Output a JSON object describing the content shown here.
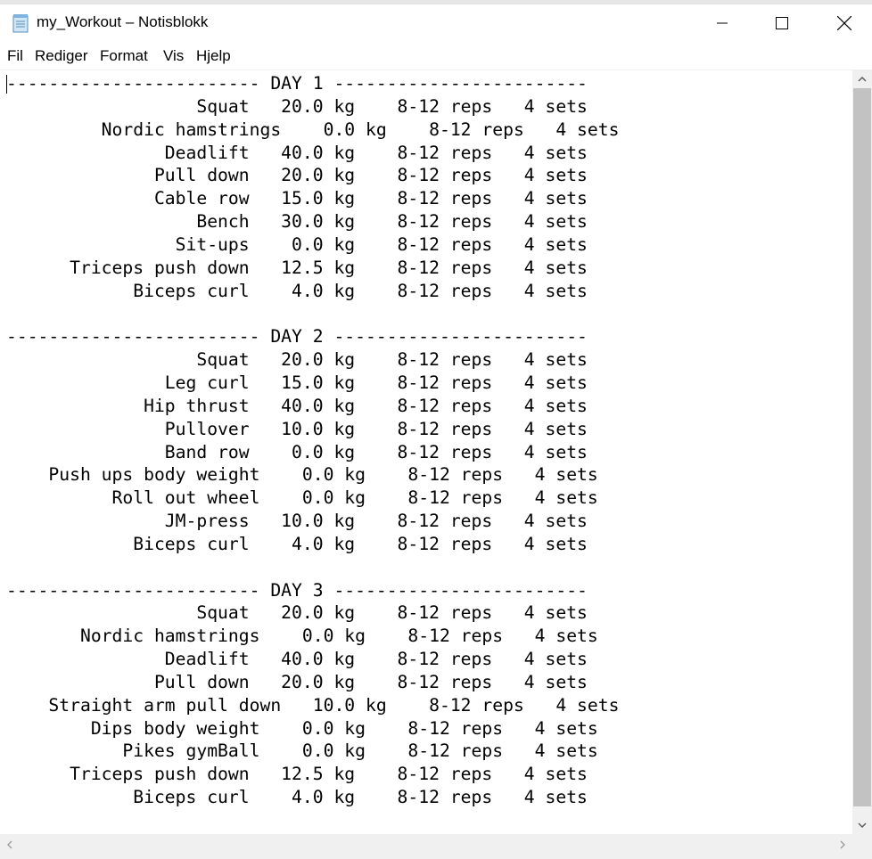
{
  "window": {
    "title": "my_Workout – Notisblokk",
    "icon": "notepad-icon"
  },
  "menu": {
    "items": [
      "Fil",
      "Rediger",
      "Format",
      "Vis",
      "Hjelp"
    ]
  },
  "document": {
    "lines": [
      "------------------------ DAY 1 ------------------------",
      "                  Squat   20.0 kg    8-12 reps   4 sets",
      "         Nordic hamstrings    0.0 kg    8-12 reps   4 sets",
      "               Deadlift   40.0 kg    8-12 reps   4 sets",
      "              Pull down   20.0 kg    8-12 reps   4 sets",
      "              Cable row   15.0 kg    8-12 reps   4 sets",
      "                  Bench   30.0 kg    8-12 reps   4 sets",
      "                Sit-ups    0.0 kg    8-12 reps   4 sets",
      "      Triceps push down   12.5 kg    8-12 reps   4 sets",
      "            Biceps curl    4.0 kg    8-12 reps   4 sets",
      "",
      "------------------------ DAY 2 ------------------------",
      "                  Squat   20.0 kg    8-12 reps   4 sets",
      "               Leg curl   15.0 kg    8-12 reps   4 sets",
      "             Hip thrust   40.0 kg    8-12 reps   4 sets",
      "               Pullover   10.0 kg    8-12 reps   4 sets",
      "               Band row    0.0 kg    8-12 reps   4 sets",
      "    Push ups body weight    0.0 kg    8-12 reps   4 sets",
      "          Roll out wheel    0.0 kg    8-12 reps   4 sets",
      "               JM-press   10.0 kg    8-12 reps   4 sets",
      "            Biceps curl    4.0 kg    8-12 reps   4 sets",
      "",
      "------------------------ DAY 3 ------------------------",
      "                  Squat   20.0 kg    8-12 reps   4 sets",
      "       Nordic hamstrings    0.0 kg    8-12 reps   4 sets",
      "               Deadlift   40.0 kg    8-12 reps   4 sets",
      "              Pull down   20.0 kg    8-12 reps   4 sets",
      "    Straight arm pull down   10.0 kg    8-12 reps   4 sets",
      "        Dips body weight    0.0 kg    8-12 reps   4 sets",
      "           Pikes gymBall    0.0 kg    8-12 reps   4 sets",
      "      Triceps push down   12.5 kg    8-12 reps   4 sets",
      "            Biceps curl    4.0 kg    8-12 reps   4 sets"
    ]
  }
}
